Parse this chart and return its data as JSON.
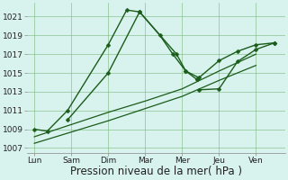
{
  "x_labels": [
    "Lun",
    "Sam",
    "Dim",
    "Mar",
    "Mer",
    "Jeu",
    "Ven"
  ],
  "x_ticks": [
    0,
    1,
    2,
    3,
    4,
    5,
    6
  ],
  "yticks": [
    1007,
    1009,
    1011,
    1013,
    1015,
    1017,
    1019,
    1021
  ],
  "ylim": [
    1006.5,
    1022.5
  ],
  "xlim": [
    -0.2,
    6.8
  ],
  "line1_x": [
    0,
    0.35,
    0.9,
    2.0,
    2.5,
    2.85,
    3.4,
    3.75,
    4.1,
    4.45
  ],
  "line1_y": [
    1009.0,
    1008.8,
    1011.0,
    1018.0,
    1021.7,
    1021.5,
    1019.0,
    1017.0,
    1015.2,
    1014.5
  ],
  "line2_x": [
    0.9,
    2.0,
    2.85,
    3.85,
    4.1,
    4.4
  ],
  "line2_y": [
    1010.0,
    1015.0,
    1021.5,
    1017.0,
    1015.2,
    1014.3
  ],
  "line3_x": [
    0,
    1,
    2,
    3,
    4,
    5,
    6
  ],
  "line3_y": [
    1008.2,
    1009.5,
    1010.8,
    1012.0,
    1013.3,
    1015.2,
    1017.0
  ],
  "line4_x": [
    0,
    1,
    2,
    3,
    4,
    5,
    6
  ],
  "line4_y": [
    1007.5,
    1008.7,
    1009.9,
    1011.2,
    1012.5,
    1014.2,
    1015.8
  ],
  "line5_x": [
    4.4,
    5.0,
    5.5,
    6.0,
    6.5
  ],
  "line5_y": [
    1014.3,
    1016.3,
    1017.3,
    1018.0,
    1018.2
  ],
  "line6_x": [
    4.45,
    5.0,
    5.5,
    6.0,
    6.5
  ],
  "line6_y": [
    1013.2,
    1013.3,
    1016.2,
    1017.5,
    1018.2
  ],
  "line_color": "#1a5c1a",
  "bg_color": "#d8f2ee",
  "grid_color": "#7ab87a",
  "xlabel": "Pression niveau de la mer( hPa )",
  "tick_fontsize": 6.5,
  "xlabel_fontsize": 8.5
}
